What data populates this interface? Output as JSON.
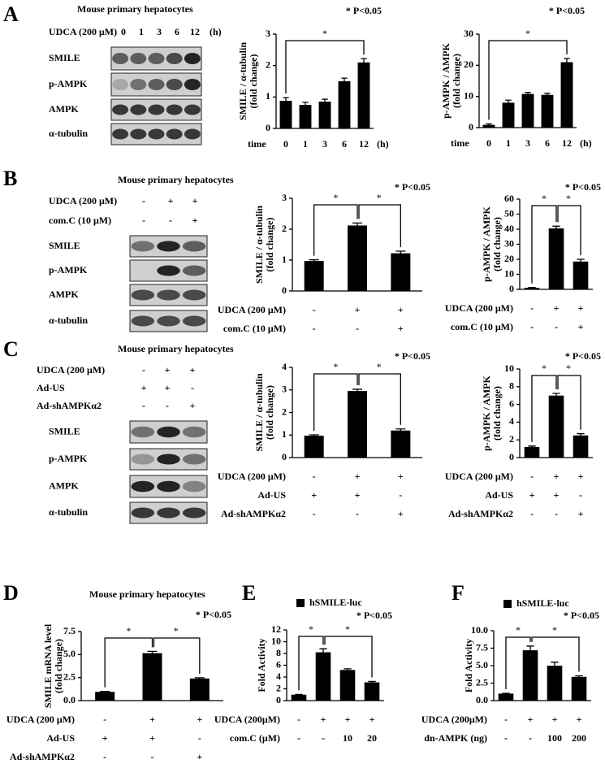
{
  "panel_labels": [
    "A",
    "B",
    "C",
    "D",
    "E",
    "F"
  ],
  "blots": [
    {
      "title": "Mouse primary hepatocytes",
      "rows": [
        {
          "label": "UDCA (200 μM)",
          "marks": [
            "0",
            "1",
            "3",
            "6",
            "12"
          ],
          "unit": "(h)"
        }
      ],
      "bands": [
        "SMILE",
        "p-AMPK",
        "AMPK",
        "α-tubulin"
      ]
    },
    {
      "title": "Mouse primary hepatocytes",
      "rows": [
        {
          "label": "UDCA (200 μM)",
          "marks": [
            "-",
            "+",
            "+"
          ]
        },
        {
          "label": "com.C (10 μM)",
          "marks": [
            "-",
            "-",
            "+"
          ]
        }
      ],
      "bands": [
        "SMILE",
        "p-AMPK",
        "AMPK",
        "α-tubulin"
      ]
    },
    {
      "title": "Mouse primary hepatocytes",
      "rows": [
        {
          "label": "UDCA (200 μM)",
          "marks": [
            "-",
            "+",
            "+"
          ]
        },
        {
          "label": "Ad-US",
          "marks": [
            "+",
            "+",
            "-"
          ]
        },
        {
          "label": "Ad-shAMPKα2",
          "marks": [
            "-",
            "-",
            "+"
          ]
        }
      ],
      "bands": [
        "SMILE",
        "p-AMPK",
        "AMPK",
        "α-tubulin"
      ]
    }
  ],
  "chart_data": [
    {
      "type": "bar",
      "title": "* P<0.05",
      "ylabel": "SMILE / α-tubulin",
      "ylabel2": "(fold change)",
      "xlabel": "time",
      "xunit": "(h)",
      "categories": [
        "0",
        "1",
        "3",
        "6",
        "12"
      ],
      "values": [
        0.88,
        0.75,
        0.85,
        1.5,
        2.1
      ],
      "errors": [
        0.1,
        0.08,
        0.08,
        0.1,
        0.12
      ],
      "color": "#000000",
      "ylim": [
        0,
        3
      ],
      "yticks": [
        0,
        1,
        2,
        3
      ],
      "brackets": [
        {
          "span": [
            0,
            4
          ],
          "label": "*"
        }
      ]
    },
    {
      "type": "bar",
      "title": "* P<0.05",
      "ylabel": "p-AMPK / AMPK",
      "ylabel2": "(fold change)",
      "xlabel": "time",
      "xunit": "(h)",
      "categories": [
        "0",
        "1",
        "3",
        "6",
        "12"
      ],
      "values": [
        0.9,
        8.0,
        10.8,
        10.5,
        21.0
      ],
      "errors": [
        0.3,
        0.8,
        0.5,
        0.5,
        1.2
      ],
      "color": "#000000",
      "ylim": [
        0,
        30
      ],
      "yticks": [
        0,
        10,
        20,
        30
      ],
      "brackets": [
        {
          "span": [
            0,
            4
          ],
          "label": "*"
        }
      ]
    },
    {
      "type": "bar",
      "title": "* P<0.05",
      "ylabel": "SMILE / α-tubulin",
      "ylabel2": "(fold change)",
      "categories": [
        null,
        null,
        null
      ],
      "values": [
        0.97,
        2.12,
        1.22
      ],
      "errors": [
        0.04,
        0.08,
        0.07
      ],
      "color": "#000000",
      "ylim": [
        0,
        3
      ],
      "yticks": [
        0,
        1,
        2,
        3
      ],
      "rows": [
        {
          "label": "UDCA (200 μM)",
          "marks": [
            "-",
            "+",
            "+"
          ]
        },
        {
          "label": "com.C (10 μM)",
          "marks": [
            "-",
            "-",
            "+"
          ]
        }
      ],
      "brackets": [
        {
          "span": [
            0,
            1
          ],
          "label": "*"
        },
        {
          "span": [
            1,
            2
          ],
          "label": "*"
        }
      ]
    },
    {
      "type": "bar",
      "title": "* P<0.05",
      "ylabel": "p-AMPK / AMPK",
      "ylabel2": "(fold change)",
      "categories": [
        null,
        null,
        null
      ],
      "values": [
        1.0,
        40.5,
        18.5
      ],
      "errors": [
        0.3,
        1.5,
        1.5
      ],
      "color": "#000000",
      "ylim": [
        0,
        60
      ],
      "yticks": [
        0,
        10,
        20,
        30,
        40,
        50,
        60
      ],
      "rows": [
        {
          "label": "UDCA (200 μM)",
          "marks": [
            "-",
            "+",
            "+"
          ]
        },
        {
          "label": "com.C (10 μM)",
          "marks": [
            "-",
            "-",
            "+"
          ]
        }
      ],
      "brackets": [
        {
          "span": [
            0,
            1
          ],
          "label": "*"
        },
        {
          "span": [
            1,
            2
          ],
          "label": "*"
        }
      ]
    },
    {
      "type": "bar",
      "title": "* P<0.05",
      "ylabel": "SMILE / α-tubulin",
      "ylabel2": "(fold change)",
      "categories": [
        null,
        null,
        null
      ],
      "values": [
        0.97,
        2.95,
        1.2
      ],
      "errors": [
        0.04,
        0.08,
        0.07
      ],
      "color": "#000000",
      "ylim": [
        0,
        4
      ],
      "yticks": [
        0,
        1,
        2,
        3,
        4
      ],
      "rows": [
        {
          "label": "UDCA (200 μM)",
          "marks": [
            "-",
            "+",
            "+"
          ]
        },
        {
          "label": "Ad-US",
          "marks": [
            "+",
            "+",
            "-"
          ]
        },
        {
          "label": "Ad-shAMPKα2",
          "marks": [
            "-",
            "-",
            "+"
          ]
        }
      ],
      "brackets": [
        {
          "span": [
            0,
            1
          ],
          "label": "*"
        },
        {
          "span": [
            1,
            2
          ],
          "label": "*"
        }
      ]
    },
    {
      "type": "bar",
      "title": "* P<0.05",
      "ylabel": "p-AMPK / AMPK",
      "ylabel2": "(fold change)",
      "categories": [
        null,
        null,
        null
      ],
      "values": [
        1.2,
        7.0,
        2.5
      ],
      "errors": [
        0.1,
        0.25,
        0.2
      ],
      "color": "#000000",
      "ylim": [
        0,
        10
      ],
      "yticks": [
        0,
        2,
        4,
        6,
        8,
        10
      ],
      "rows": [
        {
          "label": "UDCA (200 μM)",
          "marks": [
            "-",
            "+",
            "+"
          ]
        },
        {
          "label": "Ad-US",
          "marks": [
            "+",
            "+",
            "-"
          ]
        },
        {
          "label": "Ad-shAMPKα2",
          "marks": [
            "-",
            "-",
            "+"
          ]
        }
      ],
      "brackets": [
        {
          "span": [
            0,
            1
          ],
          "label": "*"
        },
        {
          "span": [
            1,
            2
          ],
          "label": "*"
        }
      ]
    },
    {
      "type": "bar",
      "subtitle": "Mouse primary hepatocytes",
      "title": "* P<0.05",
      "ylabel": "SMILE mRNA level",
      "ylabel2": "(fold change)",
      "categories": [
        null,
        null,
        null
      ],
      "values": [
        0.95,
        5.15,
        2.4
      ],
      "errors": [
        0.05,
        0.2,
        0.08
      ],
      "color": "#000000",
      "ylim": [
        0,
        7.5
      ],
      "yticks": [
        {
          "value": 0,
          "label": "0.0"
        },
        2.5,
        {
          "value": 5,
          "label": "5.0"
        },
        7.5
      ],
      "rows": [
        {
          "label": "UDCA (200 μM)",
          "marks": [
            "-",
            "+",
            "+"
          ]
        },
        {
          "label": "Ad-US",
          "marks": [
            "+",
            "+",
            "-"
          ]
        },
        {
          "label": "Ad-shAMPKα2",
          "marks": [
            "-",
            "-",
            "+"
          ]
        }
      ],
      "brackets": [
        {
          "span": [
            0,
            1
          ],
          "label": "*"
        },
        {
          "span": [
            1,
            2
          ],
          "label": "*"
        }
      ]
    },
    {
      "type": "bar",
      "title": "* P<0.05",
      "ylabel": "Fold Activity",
      "categories": [
        null,
        null,
        null,
        null
      ],
      "series": [
        {
          "name": "hSMILE-luc",
          "color": "#000000",
          "values": [
            1.0,
            8.2,
            5.2,
            3.1
          ]
        }
      ],
      "errors": [
        0.05,
        0.6,
        0.2,
        0.15
      ],
      "ylim": [
        0,
        12
      ],
      "yticks": [
        0,
        2,
        4,
        6,
        8,
        10,
        12
      ],
      "rows": [
        {
          "label": "UDCA (200μM)",
          "marks": [
            "-",
            "+",
            "+",
            "+"
          ]
        },
        {
          "label": "com.C (μM)",
          "marks": [
            "-",
            "-",
            "10",
            "20"
          ]
        }
      ],
      "brackets": [
        {
          "span": [
            0,
            1
          ],
          "label": "*"
        },
        {
          "span": [
            1,
            3
          ],
          "label": "*"
        }
      ]
    },
    {
      "type": "bar",
      "title": "* P<0.05",
      "ylabel": "Fold Activity",
      "categories": [
        null,
        null,
        null,
        null
      ],
      "series": [
        {
          "name": "hSMILE-luc",
          "color": "#000000",
          "values": [
            1.0,
            7.2,
            5.0,
            3.4
          ]
        }
      ],
      "errors": [
        0.05,
        0.6,
        0.5,
        0.15
      ],
      "ylim": [
        0,
        10
      ],
      "yticks": [
        {
          "value": 0,
          "label": "0.0"
        },
        2.5,
        {
          "value": 5,
          "label": "5.0"
        },
        7.5,
        {
          "value": 10,
          "label": "10.0"
        }
      ],
      "rows": [
        {
          "label": "UDCA (200μM)",
          "marks": [
            "-",
            "+",
            "+",
            "+"
          ]
        },
        {
          "label": "dn-AMPK (ng)",
          "marks": [
            "-",
            "-",
            "100",
            "200"
          ]
        }
      ],
      "brackets": [
        {
          "span": [
            0,
            1
          ],
          "label": "*"
        },
        {
          "span": [
            1,
            3
          ],
          "label": "*"
        }
      ]
    }
  ]
}
